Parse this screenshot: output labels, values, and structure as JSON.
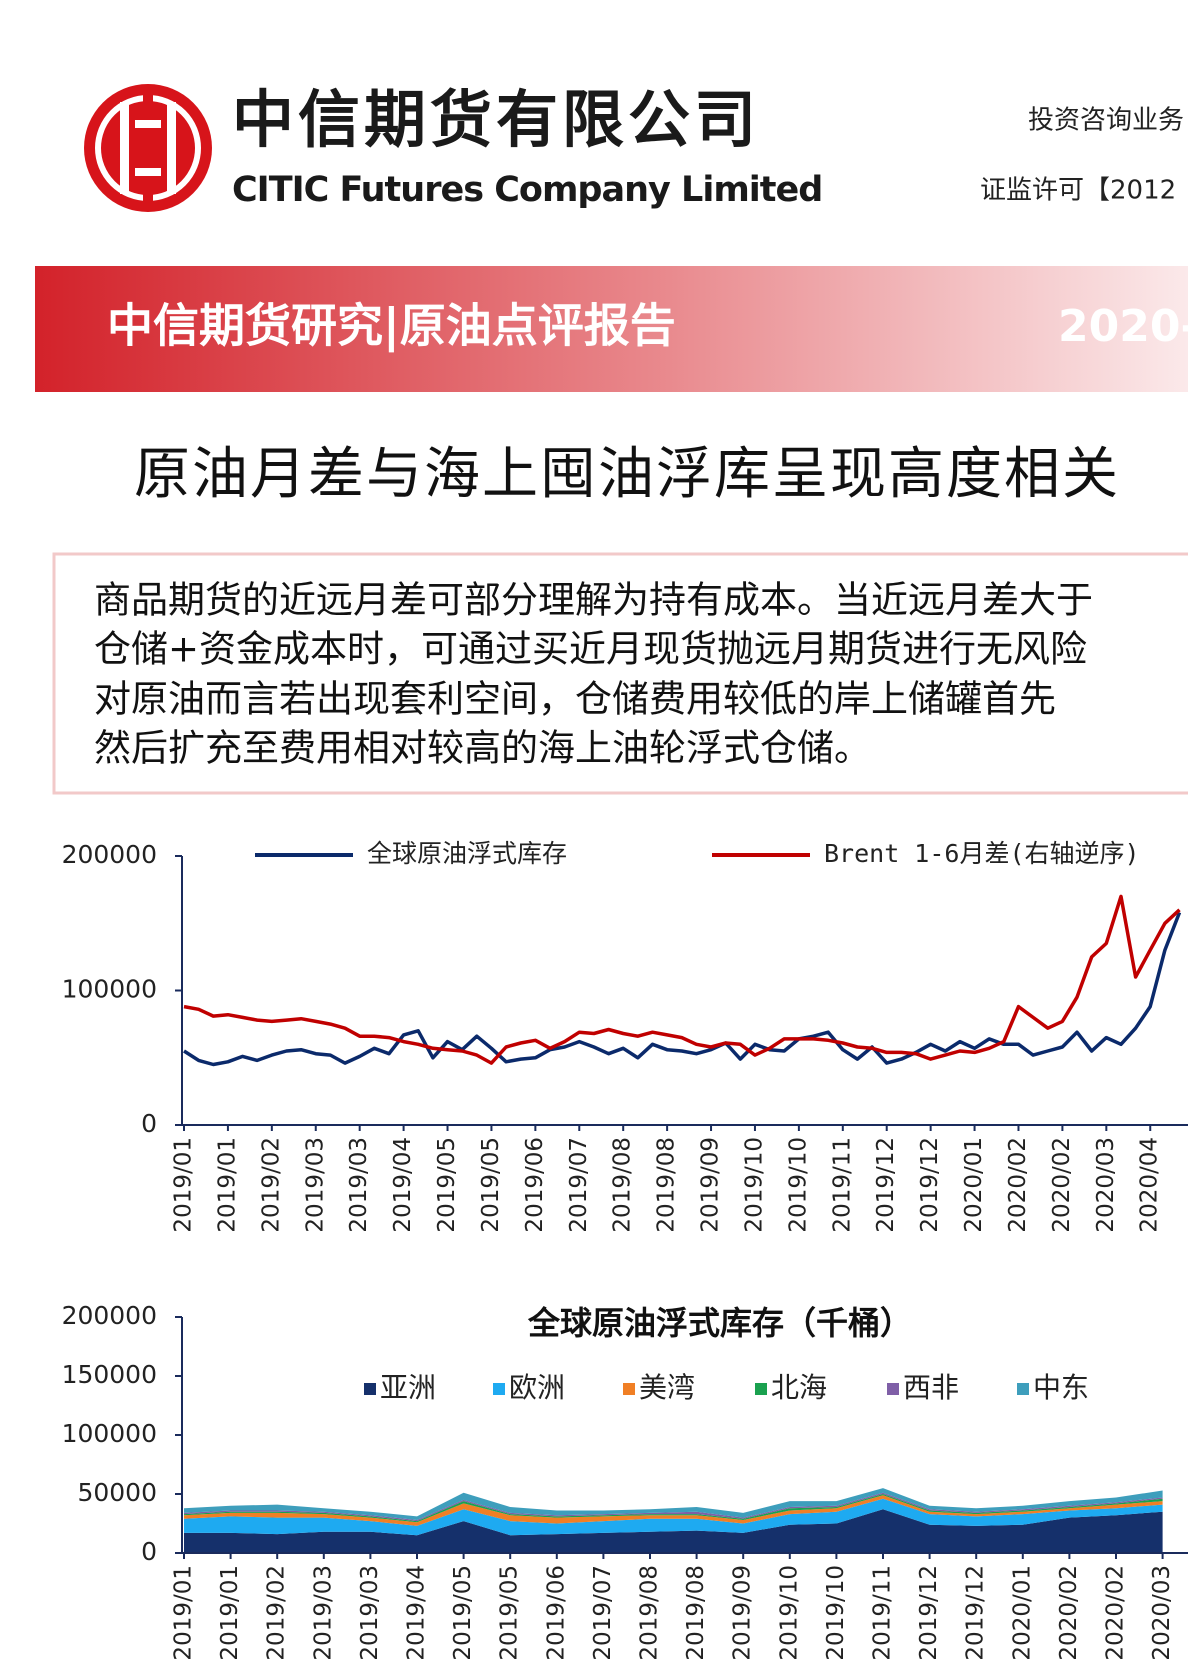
{
  "header": {
    "company_cn": "中信期货有限公司",
    "company_en": "CITIC Futures Company Limited",
    "license_lines": [
      "投资咨询业务",
      "证监许可【2012"
    ]
  },
  "banner": {
    "title": "中信期货研究|原油点评报告",
    "date": "2020-"
  },
  "title": "原油月差与海上囤油浮库呈现高度相关",
  "summary": [
    "商品期货的近远月差可部分理解为持有成本。当近远月差大于",
    "仓储+资金成本时，可通过买近月现货抛远月期货进行无风险",
    "对原油而言若出现套利空间，仓储费用较低的岸上储罐首先",
    "然后扩充至费用相对较高的海上油轮浮式仓储。"
  ],
  "chart_data": [
    {
      "type": "line",
      "categories": [
        "2019/01",
        null,
        null,
        "2019/01",
        null,
        null,
        "2019/02",
        null,
        null,
        "2019/03",
        null,
        null,
        "2019/03",
        null,
        null,
        "2019/04",
        null,
        null,
        "2019/05",
        null,
        null,
        "2019/05",
        null,
        null,
        "2019/06",
        null,
        null,
        "2019/07",
        null,
        null,
        "2019/08",
        null,
        null,
        "2019/08",
        null,
        null,
        "2019/09",
        null,
        null,
        "2019/10",
        null,
        null,
        "2019/10",
        null,
        null,
        "2019/11",
        null,
        null,
        "2019/12",
        null,
        null,
        "2019/12",
        null,
        null,
        "2020/01",
        null,
        null,
        "2020/02",
        null,
        null,
        "2020/02",
        null,
        null,
        "2020/03",
        null,
        null,
        "2020/04",
        null,
        null
      ],
      "series": [
        {
          "name": "全球原油浮式库存",
          "color": "#0b2a6b",
          "values": [
            55000,
            48000,
            45000,
            47000,
            51000,
            48000,
            52000,
            55000,
            56000,
            53000,
            52000,
            46000,
            51000,
            57000,
            53000,
            67000,
            70000,
            50000,
            62000,
            56000,
            66000,
            57000,
            47000,
            49000,
            50000,
            56000,
            58000,
            62000,
            58000,
            53000,
            57000,
            50000,
            60000,
            56000,
            55000,
            53000,
            56000,
            61000,
            49000,
            60000,
            56000,
            55000,
            64000,
            66000,
            69000,
            56000,
            49000,
            58000,
            46000,
            49000,
            54000,
            60000,
            55000,
            62000,
            57000,
            64000,
            60000,
            60000,
            52000,
            55000,
            58000,
            69000,
            55000,
            65000,
            60000,
            72000,
            88000,
            130000,
            158000
          ]
        },
        {
          "name": "Brent 1-6月差(右轴逆序)",
          "color": "#c00000",
          "axis": "y2",
          "values": [
            1.2,
            1.4,
            1.9,
            1.8,
            2.0,
            2.2,
            2.3,
            2.2,
            2.1,
            2.3,
            2.5,
            2.8,
            3.4,
            3.4,
            3.5,
            3.8,
            4.0,
            4.3,
            4.4,
            4.5,
            4.8,
            5.4,
            4.2,
            3.9,
            3.7,
            4.3,
            3.8,
            3.1,
            3.2,
            2.9,
            3.2,
            3.4,
            3.1,
            3.3,
            3.5,
            4.0,
            4.2,
            3.9,
            4.0,
            4.8,
            4.3,
            3.6,
            3.6,
            3.6,
            3.7,
            3.9,
            4.2,
            4.3,
            4.6,
            4.6,
            4.7,
            5.1,
            4.8,
            4.5,
            4.6,
            4.3,
            3.8,
            1.2,
            2.0,
            2.8,
            2.3,
            0.5,
            -2.5,
            -3.5,
            -7.0,
            -1.0,
            -3.0,
            -5.0,
            -6.0
          ]
        }
      ],
      "ylim": [
        0,
        200000
      ],
      "yticks": [
        0,
        100000,
        200000
      ],
      "y2lim": [
        10,
        -10
      ],
      "legend": "top"
    },
    {
      "type": "area",
      "stacked": true,
      "title": "全球原油浮式库存（千桶）",
      "categories": [
        "2019/01",
        "2019/01",
        "2019/02",
        "2019/03",
        "2019/03",
        "2019/04",
        "2019/05",
        "2019/05",
        "2019/06",
        "2019/07",
        "2019/08",
        "2019/08",
        "2019/09",
        "2019/10",
        "2019/10",
        "2019/11",
        "2019/12",
        "2019/12",
        "2020/01",
        "2020/02",
        "2020/02",
        "2020/03"
      ],
      "series": [
        {
          "name": "亚洲",
          "color": "#15306b",
          "values": [
            17000,
            17000,
            16000,
            18000,
            18000,
            15000,
            27000,
            15000,
            16000,
            17000,
            18000,
            19000,
            17000,
            24000,
            25000,
            37000,
            24000,
            23000,
            24000,
            30000,
            32000,
            35000
          ]
        },
        {
          "name": "欧洲",
          "color": "#1eaaf1",
          "values": [
            12000,
            14000,
            14000,
            12000,
            9000,
            8000,
            10000,
            12000,
            9000,
            10000,
            11000,
            10000,
            8000,
            9000,
            10000,
            9000,
            9000,
            8000,
            9000,
            6000,
            6000,
            6000
          ]
        },
        {
          "name": "美湾",
          "color": "#f07f25",
          "values": [
            3000,
            3000,
            4000,
            3000,
            3000,
            3000,
            5000,
            5000,
            5000,
            4000,
            3000,
            3000,
            3000,
            3000,
            3000,
            3000,
            2000,
            2000,
            2000,
            2000,
            3000,
            3000
          ]
        },
        {
          "name": "北海",
          "color": "#1aa14f",
          "values": [
            1000,
            1000,
            1000,
            1000,
            1000,
            1000,
            2000,
            1000,
            1000,
            1000,
            1000,
            1000,
            1000,
            2000,
            1000,
            1000,
            1000,
            1000,
            1000,
            1000,
            1000,
            2000
          ]
        },
        {
          "name": "西非",
          "color": "#7f5fa7",
          "values": [
            1000,
            1000,
            1000,
            1000,
            1000,
            1000,
            1000,
            1000,
            1000,
            1000,
            1000,
            2000,
            1000,
            1000,
            1000,
            1000,
            1000,
            1000,
            1000,
            1000,
            1000,
            1000
          ]
        },
        {
          "name": "中东",
          "color": "#3e9ebc",
          "values": [
            4000,
            4000,
            5000,
            3000,
            3000,
            3000,
            6000,
            5000,
            4000,
            3000,
            3000,
            4000,
            4000,
            5000,
            4000,
            4000,
            3000,
            3000,
            3000,
            4000,
            4000,
            6000
          ]
        }
      ],
      "ylim": [
        0,
        200000
      ],
      "yticks": [
        0,
        50000,
        100000,
        150000,
        200000
      ],
      "legend": "top"
    }
  ]
}
